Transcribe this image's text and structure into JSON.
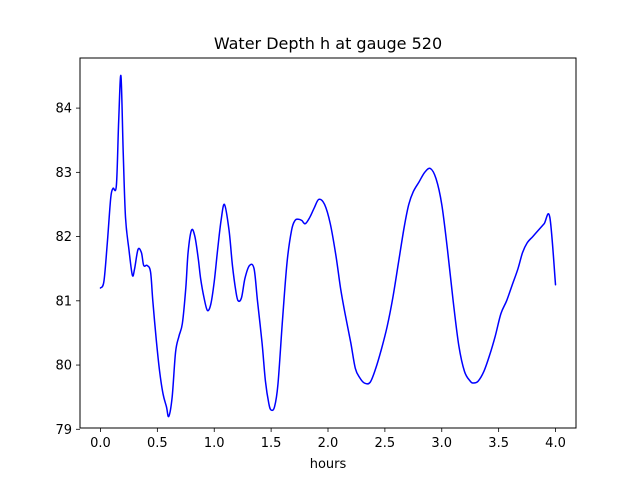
{
  "chart_data": {
    "type": "line",
    "title": "Water Depth h at gauge 520",
    "xlabel": "hours",
    "ylabel": "",
    "xlim": [
      -0.18,
      4.18
    ],
    "ylim": [
      79.02,
      84.78
    ],
    "xticks": [
      0.0,
      0.5,
      1.0,
      1.5,
      2.0,
      2.5,
      3.0,
      3.5,
      4.0
    ],
    "xtick_labels": [
      "0.0",
      "0.5",
      "1.0",
      "1.5",
      "2.0",
      "2.5",
      "3.0",
      "3.5",
      "4.0"
    ],
    "yticks": [
      79,
      80,
      81,
      82,
      83,
      84
    ],
    "ytick_labels": [
      "79",
      "80",
      "81",
      "82",
      "83",
      "84"
    ],
    "grid": false,
    "series": [
      {
        "color": "#0000ff",
        "x": [
          0.0,
          0.03,
          0.06,
          0.09,
          0.11,
          0.14,
          0.16,
          0.18,
          0.2,
          0.22,
          0.25,
          0.28,
          0.3,
          0.33,
          0.36,
          0.38,
          0.41,
          0.44,
          0.46,
          0.49,
          0.52,
          0.55,
          0.58,
          0.6,
          0.63,
          0.66,
          0.69,
          0.72,
          0.75,
          0.77,
          0.8,
          0.83,
          0.86,
          0.88,
          0.91,
          0.94,
          0.97,
          1.0,
          1.03,
          1.06,
          1.09,
          1.13,
          1.16,
          1.19,
          1.21,
          1.24,
          1.27,
          1.31,
          1.35,
          1.38,
          1.42,
          1.45,
          1.48,
          1.5,
          1.53,
          1.56,
          1.6,
          1.64,
          1.68,
          1.71,
          1.74,
          1.77,
          1.8,
          1.84,
          1.88,
          1.92,
          1.97,
          2.02,
          2.07,
          2.11,
          2.15,
          2.2,
          2.24,
          2.28,
          2.32,
          2.37,
          2.42,
          2.47,
          2.52,
          2.57,
          2.62,
          2.67,
          2.71,
          2.75,
          2.8,
          2.85,
          2.9,
          2.95,
          3.0,
          3.05,
          3.1,
          3.15,
          3.2,
          3.25,
          3.28,
          3.32,
          3.37,
          3.42,
          3.47,
          3.52,
          3.57,
          3.62,
          3.67,
          3.71,
          3.75,
          3.8,
          3.85,
          3.9,
          3.95,
          4.0
        ],
        "y": [
          81.2,
          81.3,
          81.9,
          82.6,
          82.75,
          82.8,
          83.8,
          84.5,
          83.3,
          82.3,
          81.8,
          81.4,
          81.5,
          81.8,
          81.75,
          81.55,
          81.55,
          81.45,
          81.0,
          80.4,
          79.9,
          79.55,
          79.35,
          79.2,
          79.5,
          80.2,
          80.45,
          80.65,
          81.2,
          81.75,
          82.1,
          82.0,
          81.65,
          81.35,
          81.05,
          80.85,
          80.95,
          81.3,
          81.8,
          82.25,
          82.5,
          82.1,
          81.55,
          81.15,
          81.0,
          81.05,
          81.35,
          81.55,
          81.5,
          81.0,
          80.35,
          79.75,
          79.4,
          79.3,
          79.35,
          79.7,
          80.7,
          81.6,
          82.1,
          82.25,
          82.27,
          82.25,
          82.2,
          82.3,
          82.45,
          82.58,
          82.5,
          82.2,
          81.7,
          81.2,
          80.8,
          80.35,
          79.95,
          79.8,
          79.72,
          79.73,
          79.95,
          80.25,
          80.6,
          81.05,
          81.6,
          82.15,
          82.5,
          82.7,
          82.85,
          83.0,
          83.06,
          82.9,
          82.5,
          81.8,
          81.0,
          80.3,
          79.9,
          79.75,
          79.72,
          79.75,
          79.9,
          80.15,
          80.45,
          80.8,
          81.0,
          81.25,
          81.5,
          81.75,
          81.9,
          82.0,
          82.1,
          82.2,
          82.3,
          81.25
        ],
        "line_width": 1.5
      }
    ]
  }
}
